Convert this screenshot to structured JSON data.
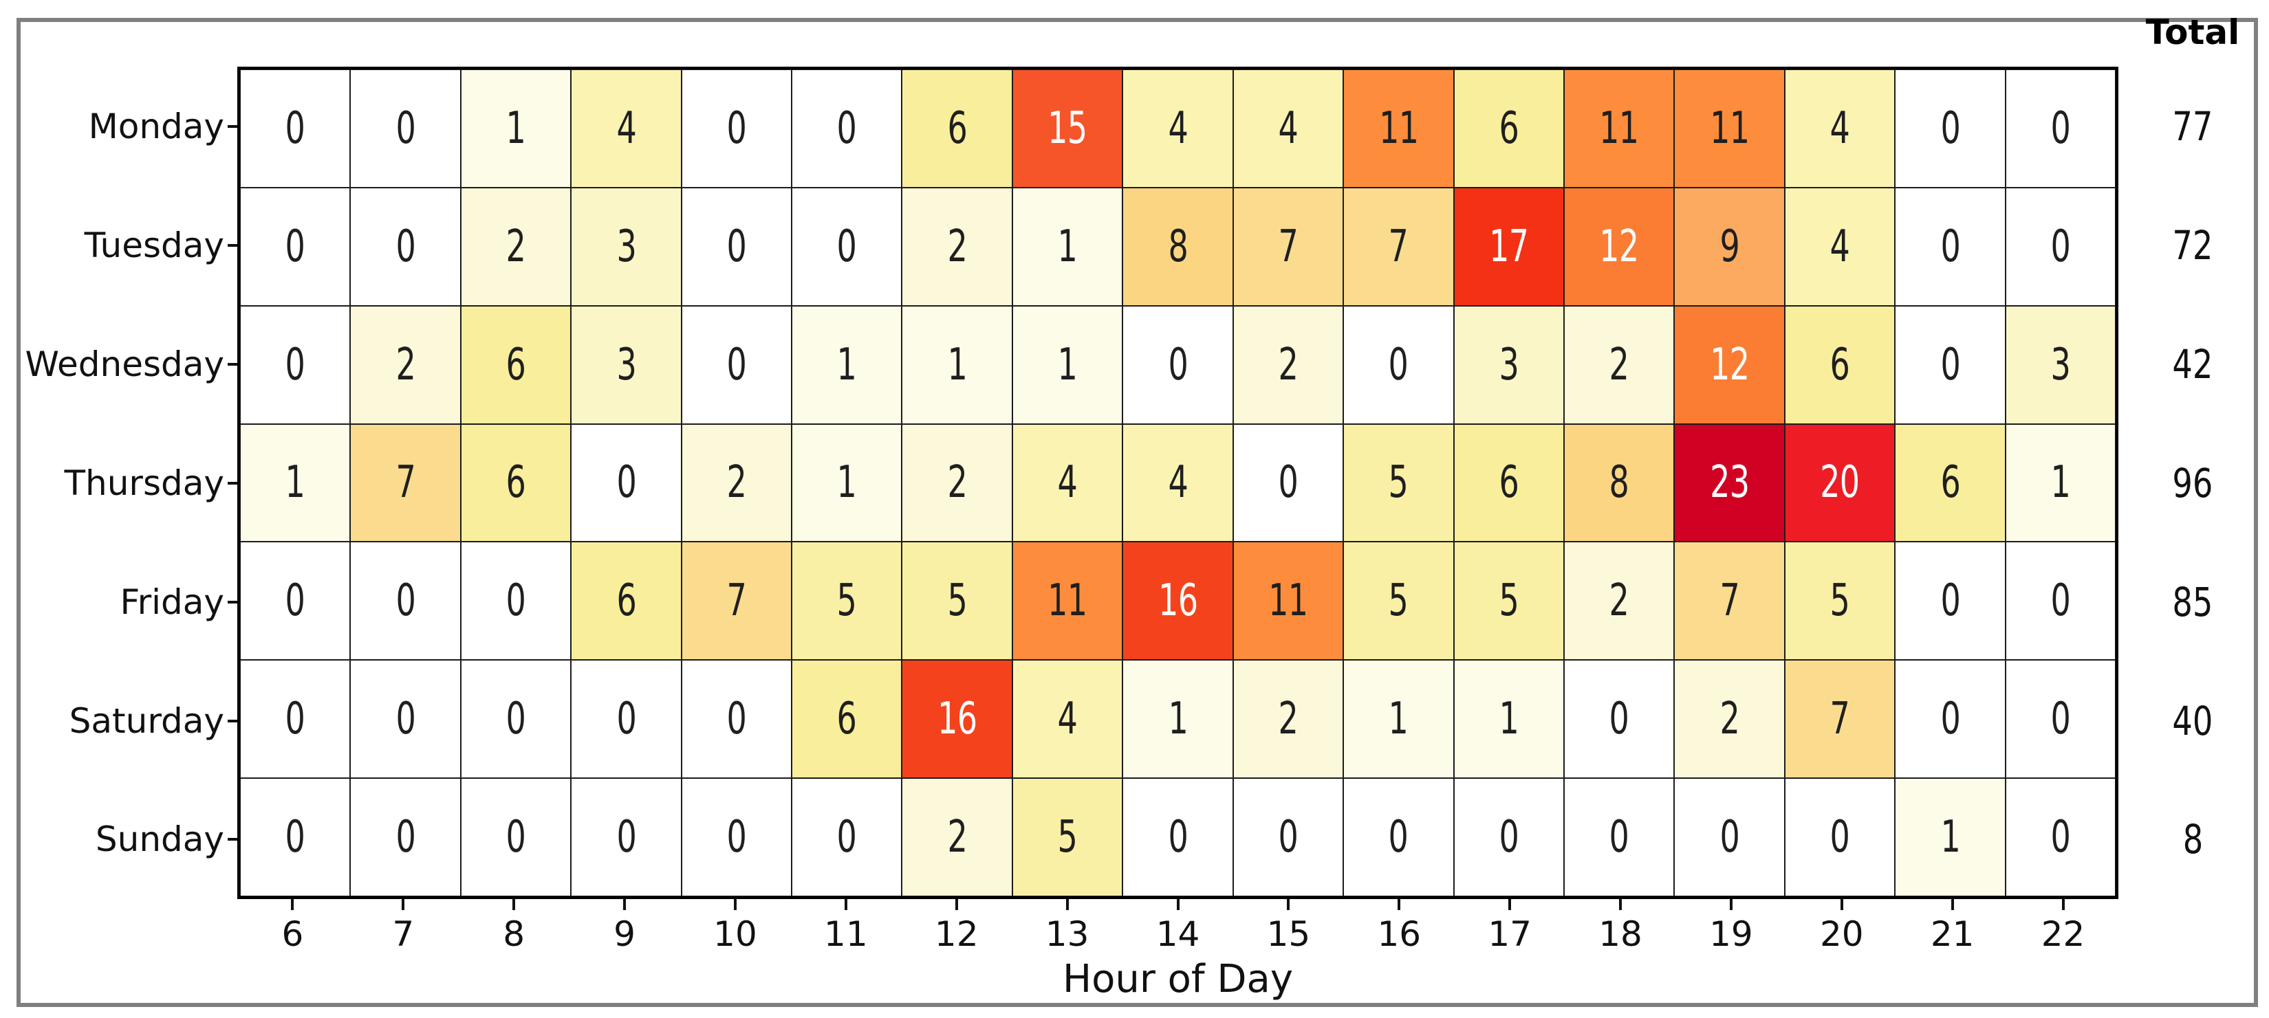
{
  "figure": {
    "background": "#ffffff",
    "frame_border_color": "#7f7f7f",
    "grid_line_color": "#1c1c1c",
    "spine_color": "#000000"
  },
  "chart_data": {
    "type": "heatmap",
    "title": "",
    "xlabel": "Hour of Day",
    "ylabel": "",
    "total_label": "Total",
    "x_ticks": [
      "6",
      "7",
      "8",
      "9",
      "10",
      "11",
      "12",
      "13",
      "14",
      "15",
      "16",
      "17",
      "18",
      "19",
      "20",
      "21",
      "22"
    ],
    "y_ticks": [
      "Monday",
      "Tuesday",
      "Wednesday",
      "Thursday",
      "Friday",
      "Saturday",
      "Sunday"
    ],
    "rows": [
      {
        "day": "Monday",
        "values": [
          0,
          0,
          1,
          4,
          0,
          0,
          6,
          15,
          4,
          4,
          11,
          6,
          11,
          11,
          4,
          0,
          0
        ],
        "total": 77
      },
      {
        "day": "Tuesday",
        "values": [
          0,
          0,
          2,
          3,
          0,
          0,
          2,
          1,
          8,
          7,
          7,
          17,
          12,
          9,
          4,
          0,
          0
        ],
        "total": 72
      },
      {
        "day": "Wednesday",
        "values": [
          0,
          2,
          6,
          3,
          0,
          1,
          1,
          1,
          0,
          2,
          0,
          3,
          2,
          12,
          6,
          0,
          3
        ],
        "total": 42
      },
      {
        "day": "Thursday",
        "values": [
          1,
          7,
          6,
          0,
          2,
          1,
          2,
          4,
          4,
          0,
          5,
          6,
          8,
          23,
          20,
          6,
          1
        ],
        "total": 96
      },
      {
        "day": "Friday",
        "values": [
          0,
          0,
          0,
          6,
          7,
          5,
          5,
          11,
          16,
          11,
          5,
          5,
          2,
          7,
          5,
          0,
          0
        ],
        "total": 85
      },
      {
        "day": "Saturday",
        "values": [
          0,
          0,
          0,
          0,
          0,
          6,
          16,
          4,
          1,
          2,
          1,
          1,
          0,
          2,
          7,
          0,
          0
        ],
        "total": 40
      },
      {
        "day": "Sunday",
        "values": [
          0,
          0,
          0,
          0,
          0,
          0,
          2,
          5,
          0,
          0,
          0,
          0,
          0,
          0,
          0,
          1,
          0
        ],
        "total": 8
      }
    ],
    "value_range": [
      0,
      23
    ],
    "grid": true,
    "legend_position": "none",
    "palette": {
      "0": "#ffffff",
      "1": "#fdfce9",
      "2": "#fcf9da",
      "3": "#fbf6c8",
      "4": "#fbf3b2",
      "5": "#faf0a5",
      "6": "#f9ee9b",
      "7": "#fbdc8e",
      "8": "#fcd583",
      "9": "#fcaa5f",
      "11": "#fd8d3c",
      "12": "#fa7d33",
      "15": "#f6552a",
      "16": "#f4431c",
      "17": "#f43114",
      "20": "#ee1c24",
      "23": "#d00122"
    },
    "annot_text_dark": "#1f1f1f",
    "annot_text_light": "#fcfcfc",
    "white_text_min_value": 12
  }
}
